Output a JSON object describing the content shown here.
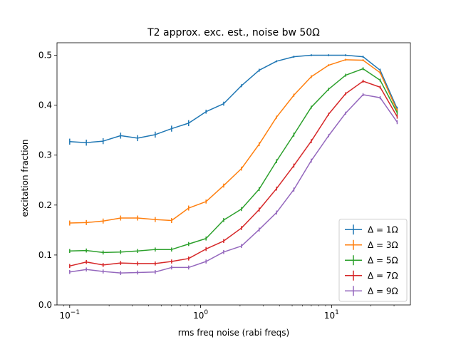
{
  "chart_data": {
    "type": "line",
    "title": "T2 approx. exc. est., noise bw 50Ω",
    "xlabel": "rms freq noise (rabi freqs)",
    "ylabel": "excitation fraction",
    "xscale": "log",
    "xlim": [
      0.08,
      40
    ],
    "ylim": [
      0.0,
      0.525
    ],
    "x_ticks": [
      {
        "value": 0.1,
        "base": "10",
        "exp": "−1"
      },
      {
        "value": 1,
        "base": "10",
        "exp": "0"
      },
      {
        "value": 10,
        "base": "10",
        "exp": "1"
      }
    ],
    "y_ticks": [
      {
        "value": 0.0,
        "label": "0.0"
      },
      {
        "value": 0.1,
        "label": "0.1"
      },
      {
        "value": 0.2,
        "label": "0.2"
      },
      {
        "value": 0.3,
        "label": "0.3"
      },
      {
        "value": 0.4,
        "label": "0.4"
      },
      {
        "value": 0.5,
        "label": "0.5"
      }
    ],
    "legend_position": "lower-right",
    "error_bars": true,
    "x": [
      0.1,
      0.134,
      0.18,
      0.245,
      0.33,
      0.45,
      0.6,
      0.81,
      1.1,
      1.5,
      2.05,
      2.8,
      3.8,
      5.15,
      7.0,
      9.5,
      12.8,
      17.4,
      23.5,
      31.7
    ],
    "series": [
      {
        "name": "Δ = 1Ω",
        "color": "#1f77b4",
        "values": [
          0.327,
          0.325,
          0.328,
          0.339,
          0.334,
          0.341,
          0.353,
          0.364,
          0.387,
          0.403,
          0.439,
          0.47,
          0.488,
          0.497,
          0.5,
          0.5,
          0.5,
          0.497,
          0.47,
          0.393
        ],
        "errors": [
          0.006,
          0.006,
          0.006,
          0.006,
          0.006,
          0.006,
          0.006,
          0.006,
          0.004,
          0.004,
          0.003,
          0.003,
          0.002,
          0.002,
          0.002,
          0.002,
          0.002,
          0.002,
          0.003,
          0.004
        ]
      },
      {
        "name": "Δ = 3Ω",
        "color": "#ff7f0e",
        "values": [
          0.164,
          0.165,
          0.168,
          0.174,
          0.174,
          0.171,
          0.169,
          0.194,
          0.207,
          0.239,
          0.273,
          0.322,
          0.376,
          0.42,
          0.457,
          0.48,
          0.491,
          0.49,
          0.465,
          0.389
        ],
        "errors": [
          0.005,
          0.005,
          0.005,
          0.005,
          0.005,
          0.005,
          0.005,
          0.005,
          0.004,
          0.004,
          0.004,
          0.004,
          0.003,
          0.003,
          0.003,
          0.002,
          0.002,
          0.002,
          0.003,
          0.004
        ]
      },
      {
        "name": "Δ = 5Ω",
        "color": "#2ca02c",
        "values": [
          0.108,
          0.109,
          0.105,
          0.106,
          0.108,
          0.111,
          0.111,
          0.122,
          0.133,
          0.17,
          0.192,
          0.232,
          0.288,
          0.341,
          0.396,
          0.432,
          0.46,
          0.473,
          0.45,
          0.385
        ],
        "errors": [
          0.004,
          0.004,
          0.004,
          0.004,
          0.004,
          0.004,
          0.004,
          0.004,
          0.004,
          0.004,
          0.004,
          0.004,
          0.004,
          0.004,
          0.003,
          0.003,
          0.003,
          0.003,
          0.003,
          0.004
        ]
      },
      {
        "name": "Δ = 7Ω",
        "color": "#d62728",
        "values": [
          0.078,
          0.086,
          0.08,
          0.084,
          0.083,
          0.083,
          0.087,
          0.093,
          0.112,
          0.128,
          0.154,
          0.191,
          0.233,
          0.279,
          0.328,
          0.382,
          0.423,
          0.448,
          0.436,
          0.377
        ],
        "errors": [
          0.004,
          0.004,
          0.004,
          0.004,
          0.004,
          0.004,
          0.004,
          0.004,
          0.004,
          0.004,
          0.004,
          0.004,
          0.004,
          0.004,
          0.004,
          0.003,
          0.003,
          0.003,
          0.003,
          0.004
        ]
      },
      {
        "name": "Δ = 9Ω",
        "color": "#9467bd",
        "values": [
          0.066,
          0.071,
          0.067,
          0.064,
          0.065,
          0.066,
          0.075,
          0.075,
          0.087,
          0.106,
          0.118,
          0.151,
          0.185,
          0.231,
          0.289,
          0.339,
          0.384,
          0.421,
          0.415,
          0.366
        ],
        "errors": [
          0.004,
          0.004,
          0.004,
          0.004,
          0.004,
          0.004,
          0.004,
          0.004,
          0.004,
          0.004,
          0.004,
          0.004,
          0.004,
          0.004,
          0.004,
          0.003,
          0.003,
          0.003,
          0.003,
          0.004
        ]
      }
    ]
  }
}
